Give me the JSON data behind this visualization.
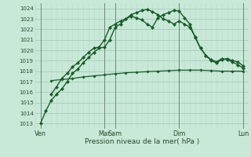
{
  "xlabel": "Pression niveau de la mer( hPa )",
  "bg_color": "#c8e8d8",
  "grid_major_color": "#a0c8b4",
  "grid_minor_color": "#b8dcc8",
  "line_color": "#1a5c2a",
  "ylim": [
    1012.5,
    1024.5
  ],
  "yticks": [
    1013,
    1014,
    1015,
    1016,
    1017,
    1018,
    1019,
    1020,
    1021,
    1022,
    1023,
    1024
  ],
  "xlim": [
    0,
    40
  ],
  "xtick_positions": [
    1,
    13,
    15,
    27,
    39
  ],
  "xtick_labels": [
    "Ven",
    "Mar",
    "Sam",
    "Dim",
    "Lun"
  ],
  "vline_positions": [
    1,
    13,
    15,
    27,
    39
  ],
  "series1_x": [
    1,
    2,
    3,
    4,
    5,
    6,
    7,
    8,
    9,
    10,
    11,
    12,
    13,
    14,
    15,
    16,
    17,
    18,
    19,
    20,
    21,
    22,
    23,
    24,
    25,
    26,
    27,
    28,
    29,
    30,
    31,
    32,
    33,
    34,
    35,
    36,
    37,
    38,
    39
  ],
  "series1_y": [
    1013.0,
    1014.2,
    1015.2,
    1015.8,
    1016.3,
    1017.0,
    1017.8,
    1018.2,
    1018.8,
    1019.3,
    1019.8,
    1020.2,
    1020.3,
    1021.0,
    1022.2,
    1022.5,
    1023.0,
    1023.25,
    1023.1,
    1022.9,
    1022.5,
    1022.2,
    1023.1,
    1023.4,
    1023.6,
    1023.8,
    1023.75,
    1023.1,
    1022.5,
    1021.2,
    1020.2,
    1019.5,
    1019.0,
    1018.8,
    1019.1,
    1019.2,
    1019.0,
    1018.9,
    1018.5
  ],
  "series2_x": [
    3,
    4,
    5,
    6,
    7,
    8,
    9,
    10,
    11,
    12,
    13,
    14,
    15,
    16,
    17,
    18,
    19,
    20,
    21,
    22,
    23,
    24,
    25,
    26,
    27,
    28,
    29,
    30,
    31,
    32,
    33,
    34,
    35,
    36,
    37,
    38,
    39
  ],
  "series2_y": [
    1015.8,
    1016.5,
    1017.3,
    1017.8,
    1018.4,
    1018.8,
    1019.3,
    1019.8,
    1020.2,
    1020.3,
    1021.0,
    1022.2,
    1022.5,
    1022.8,
    1023.0,
    1023.4,
    1023.6,
    1023.8,
    1023.9,
    1023.7,
    1023.4,
    1023.0,
    1022.8,
    1022.5,
    1022.8,
    1022.5,
    1022.2,
    1021.3,
    1020.2,
    1019.5,
    1019.1,
    1018.9,
    1019.2,
    1019.1,
    1018.9,
    1018.6,
    1018.3
  ],
  "series3_x": [
    3,
    5,
    7,
    9,
    11,
    13,
    15,
    17,
    19,
    21,
    23,
    25,
    27,
    29,
    31,
    33,
    35,
    37,
    39
  ],
  "series3_y": [
    1017.1,
    1017.2,
    1017.3,
    1017.45,
    1017.55,
    1017.65,
    1017.75,
    1017.85,
    1017.9,
    1017.95,
    1018.0,
    1018.05,
    1018.1,
    1018.1,
    1018.1,
    1018.05,
    1018.0,
    1018.0,
    1018.0
  ]
}
